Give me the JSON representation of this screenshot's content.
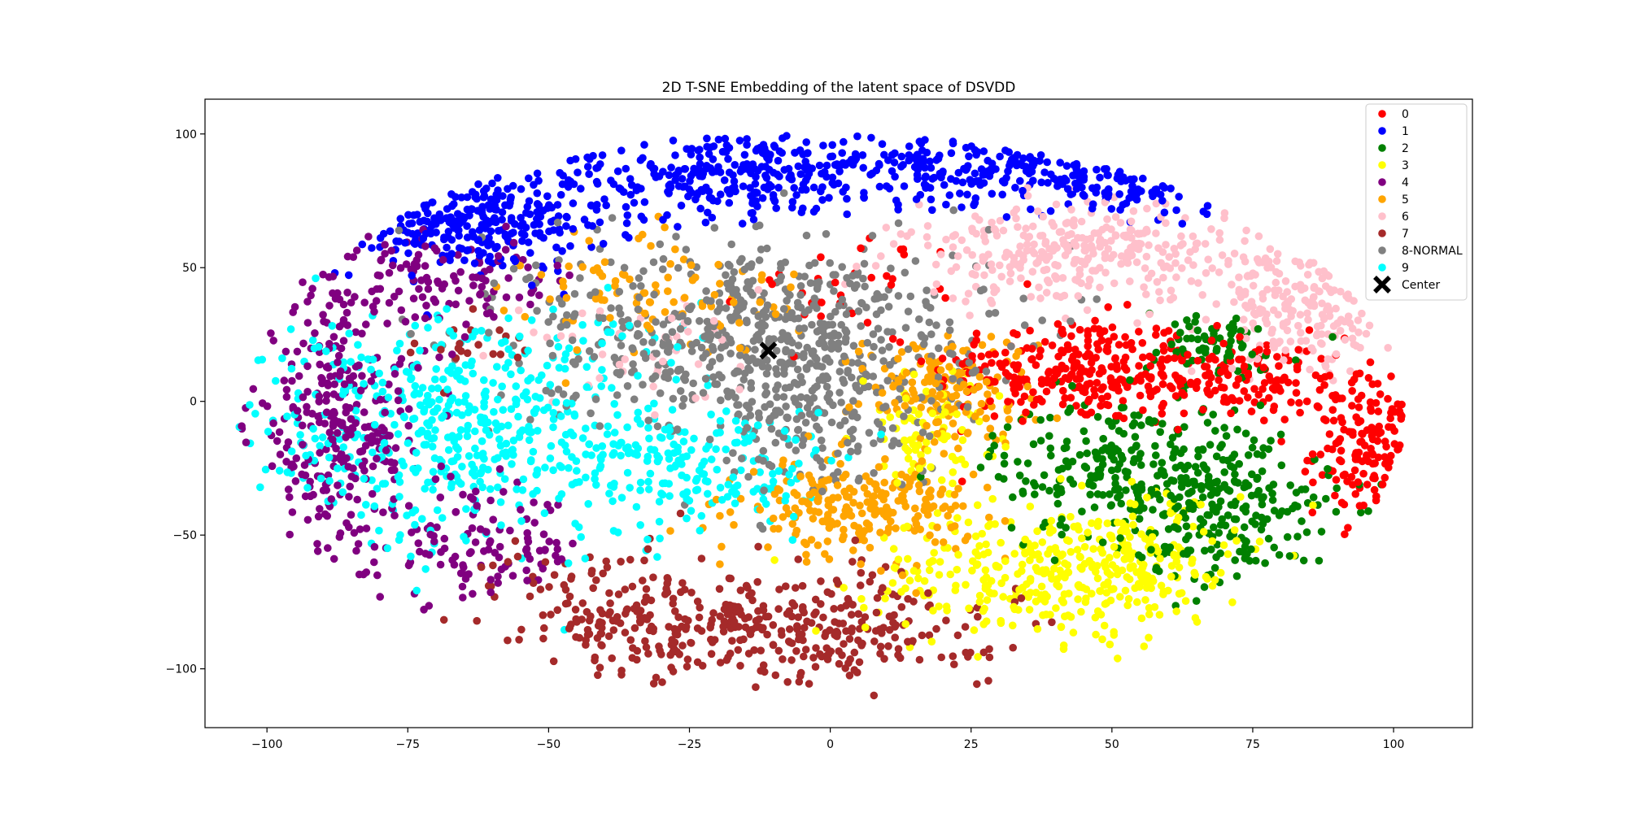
{
  "chart_data": {
    "type": "scatter",
    "title": "2D T-SNE Embedding of the latent space of DSVDD",
    "xlabel": "",
    "ylabel": "",
    "xlim": [
      -111,
      114
    ],
    "ylim": [
      -122,
      113
    ],
    "xticks": [
      -100,
      -75,
      -50,
      -25,
      0,
      25,
      50,
      75,
      100
    ],
    "yticks": [
      -100,
      -50,
      0,
      50,
      100
    ],
    "grid": false,
    "legend_position": "top-right",
    "series": [
      {
        "name": "0",
        "color": "#ff0000",
        "clusters": [
          {
            "cx": 42,
            "cy": 12,
            "sx": 12,
            "sy": 10,
            "n": 240
          },
          {
            "cx": 70,
            "cy": 8,
            "sx": 11,
            "sy": 8,
            "n": 170
          },
          {
            "cx": 96,
            "cy": -17,
            "sx": 5,
            "sy": 13,
            "n": 140
          },
          {
            "cx": 5,
            "cy": 45,
            "sx": 10,
            "sy": 8,
            "n": 30
          }
        ]
      },
      {
        "name": "1",
        "color": "#0000ff",
        "clusters": [
          {
            "cx": -65,
            "cy": 67,
            "sx": 13,
            "sy": 9,
            "n": 260
          },
          {
            "cx": -20,
            "cy": 85,
            "sx": 16,
            "sy": 8,
            "n": 260
          },
          {
            "cx": 25,
            "cy": 88,
            "sx": 16,
            "sy": 7,
            "n": 220
          },
          {
            "cx": 55,
            "cy": 80,
            "sx": 8,
            "sy": 6,
            "n": 70
          }
        ]
      },
      {
        "name": "2",
        "color": "#008000",
        "clusters": [
          {
            "cx": 55,
            "cy": -25,
            "sx": 13,
            "sy": 13,
            "n": 300
          },
          {
            "cx": 72,
            "cy": -45,
            "sx": 9,
            "sy": 12,
            "n": 150
          },
          {
            "cx": 67,
            "cy": 20,
            "sx": 8,
            "sy": 7,
            "n": 70
          }
        ]
      },
      {
        "name": "3",
        "color": "#ffff00",
        "clusters": [
          {
            "cx": 35,
            "cy": -65,
            "sx": 14,
            "sy": 12,
            "n": 260
          },
          {
            "cx": 55,
            "cy": -60,
            "sx": 9,
            "sy": 13,
            "n": 150
          },
          {
            "cx": 18,
            "cy": -10,
            "sx": 6,
            "sy": 10,
            "n": 90
          }
        ]
      },
      {
        "name": "4",
        "color": "#800080",
        "clusters": [
          {
            "cx": -87,
            "cy": -10,
            "sx": 8,
            "sy": 25,
            "n": 300
          },
          {
            "cx": -62,
            "cy": -55,
            "sx": 9,
            "sy": 10,
            "n": 110
          },
          {
            "cx": -70,
            "cy": 45,
            "sx": 14,
            "sy": 8,
            "n": 110
          }
        ]
      },
      {
        "name": "5",
        "color": "#ffa500",
        "clusters": [
          {
            "cx": 5,
            "cy": -40,
            "sx": 10,
            "sy": 9,
            "n": 230
          },
          {
            "cx": 20,
            "cy": 5,
            "sx": 8,
            "sy": 10,
            "n": 160
          },
          {
            "cx": -30,
            "cy": 40,
            "sx": 12,
            "sy": 12,
            "n": 90
          }
        ]
      },
      {
        "name": "6",
        "color": "#ffc0cb",
        "clusters": [
          {
            "cx": 45,
            "cy": 55,
            "sx": 16,
            "sy": 9,
            "n": 330
          },
          {
            "cx": 85,
            "cy": 35,
            "sx": 8,
            "sy": 12,
            "n": 180
          },
          {
            "cx": -35,
            "cy": 20,
            "sx": 10,
            "sy": 10,
            "n": 40
          }
        ]
      },
      {
        "name": "7",
        "color": "#a52a2a",
        "clusters": [
          {
            "cx": -10,
            "cy": -85,
            "sx": 20,
            "sy": 10,
            "n": 360
          },
          {
            "cx": -40,
            "cy": -75,
            "sx": 10,
            "sy": 12,
            "n": 90
          },
          {
            "cx": -68,
            "cy": 20,
            "sx": 6,
            "sy": 6,
            "n": 20
          }
        ]
      },
      {
        "name": "8-NORMAL",
        "color": "#808080",
        "clusters": [
          {
            "cx": -12,
            "cy": 25,
            "sx": 20,
            "sy": 18,
            "n": 650
          },
          {
            "cx": -5,
            "cy": -10,
            "sx": 10,
            "sy": 12,
            "n": 120
          }
        ]
      },
      {
        "name": "9",
        "color": "#00ffff",
        "clusters": [
          {
            "cx": -65,
            "cy": -10,
            "sx": 18,
            "sy": 22,
            "n": 520
          },
          {
            "cx": -22,
            "cy": -25,
            "sx": 12,
            "sy": 12,
            "n": 180
          }
        ]
      }
    ],
    "center": {
      "name": "Center",
      "x": -11,
      "y": 19,
      "color": "#000000"
    }
  }
}
